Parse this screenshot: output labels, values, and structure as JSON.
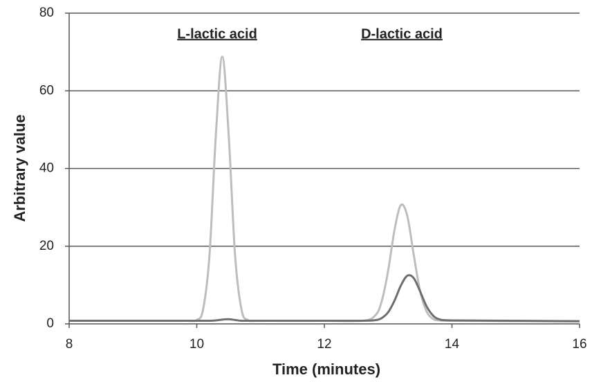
{
  "chart_data": {
    "type": "line",
    "x": [
      8,
      9,
      9.8,
      10.0,
      10.1,
      10.2,
      10.3,
      10.4,
      10.5,
      10.6,
      10.7,
      10.8,
      11.0,
      12.0,
      12.6,
      12.8,
      12.9,
      13.0,
      13.1,
      13.2,
      13.3,
      13.4,
      13.5,
      13.6,
      13.7,
      13.8,
      14.0,
      15,
      16
    ],
    "series": [
      {
        "color": "#bdbdbd",
        "values": [
          0.8,
          0.8,
          0.8,
          1.0,
          3.8,
          17.8,
          48.8,
          68.8,
          48.8,
          17.8,
          3.8,
          1.0,
          0.8,
          0.8,
          0.8,
          2.2,
          5.9,
          13.7,
          24.2,
          30.6,
          27.8,
          17.9,
          8.5,
          3.3,
          1.3,
          0.9,
          0.8,
          0.7,
          0.6
        ]
      },
      {
        "color": "#6e6e6e",
        "values": [
          0.8,
          0.8,
          0.8,
          0.8,
          0.8,
          0.8,
          0.9,
          1.1,
          1.2,
          1.0,
          0.8,
          0.8,
          0.8,
          0.8,
          0.8,
          0.95,
          1.5,
          3.0,
          6.0,
          9.9,
          12.4,
          11.8,
          8.4,
          4.6,
          2.2,
          1.2,
          0.9,
          0.8,
          0.7
        ]
      }
    ],
    "xlabel": "Time (minutes)",
    "ylabel": "Arbitrary value",
    "annotations": [
      "L-lactic acid",
      "D-lactic acid"
    ],
    "xlim": [
      8,
      16
    ],
    "xticks": [
      8,
      10,
      12,
      14,
      16
    ],
    "ylim": [
      0,
      80
    ],
    "yticks": [
      0,
      20,
      40,
      60,
      80
    ],
    "grid": true
  }
}
